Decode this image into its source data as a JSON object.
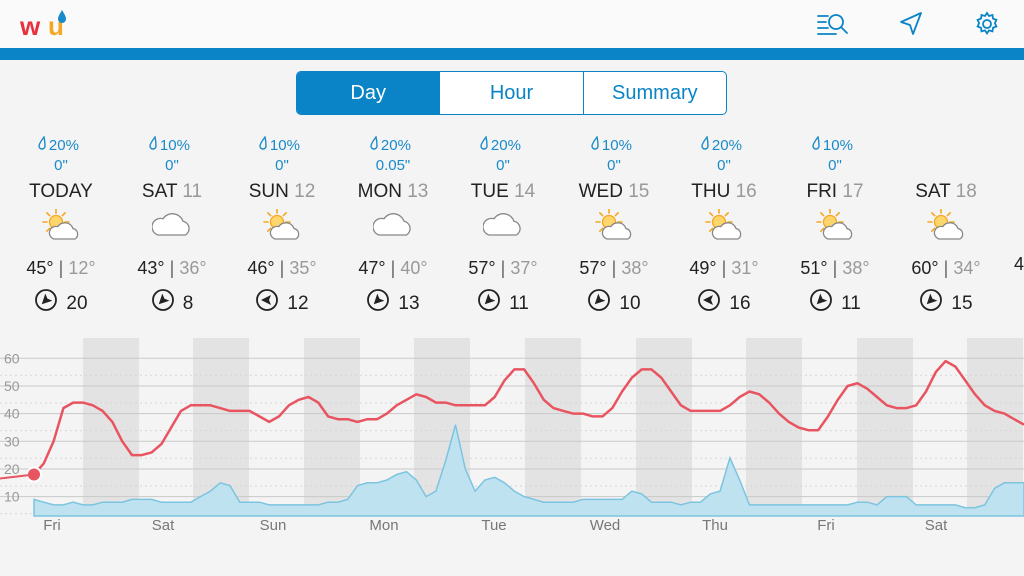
{
  "header": {
    "logo_text": "wu",
    "icons": [
      "search-list-icon",
      "location-arrow-icon",
      "gear-icon"
    ],
    "accent_color": "#0a84c6"
  },
  "tabs": [
    {
      "label": "Day",
      "active": true
    },
    {
      "label": "Hour",
      "active": false
    },
    {
      "label": "Summary",
      "active": false
    }
  ],
  "days": [
    {
      "precip": "20%",
      "amount": "0\"",
      "name": "TODAY",
      "num": "",
      "icon": "partly-cloudy",
      "hi": "45°",
      "lo": "12°",
      "wind": "20",
      "wind_dir": 225
    },
    {
      "precip": "10%",
      "amount": "0\"",
      "name": "SAT",
      "num": "11",
      "icon": "cloudy",
      "hi": "43°",
      "lo": "36°",
      "wind": "8",
      "wind_dir": 225
    },
    {
      "precip": "10%",
      "amount": "0\"",
      "name": "SUN",
      "num": "12",
      "icon": "partly-cloudy",
      "hi": "46°",
      "lo": "35°",
      "wind": "12",
      "wind_dir": 270
    },
    {
      "precip": "20%",
      "amount": "0.05\"",
      "name": "MON",
      "num": "13",
      "icon": "cloudy",
      "hi": "47°",
      "lo": "40°",
      "wind": "13",
      "wind_dir": 225
    },
    {
      "precip": "20%",
      "amount": "0\"",
      "name": "TUE",
      "num": "14",
      "icon": "cloudy",
      "hi": "57°",
      "lo": "37°",
      "wind": "11",
      "wind_dir": 225
    },
    {
      "precip": "10%",
      "amount": "0\"",
      "name": "WED",
      "num": "15",
      "icon": "partly-cloudy",
      "hi": "57°",
      "lo": "38°",
      "wind": "10",
      "wind_dir": 225
    },
    {
      "precip": "20%",
      "amount": "0\"",
      "name": "THU",
      "num": "16",
      "icon": "partly-cloudy",
      "hi": "49°",
      "lo": "31°",
      "wind": "16",
      "wind_dir": 270
    },
    {
      "precip": "10%",
      "amount": "0\"",
      "name": "FRI",
      "num": "17",
      "icon": "partly-cloudy",
      "hi": "51°",
      "lo": "38°",
      "wind": "11",
      "wind_dir": 225
    },
    {
      "precip": "",
      "amount": "",
      "name": "SAT",
      "num": "18",
      "icon": "partly-cloudy",
      "hi": "60°",
      "lo": "34°",
      "wind": "15",
      "wind_dir": 225
    }
  ],
  "partial_day": {
    "hi": "4"
  },
  "chart_data": {
    "type": "line",
    "y_ticks": [
      "60",
      "50",
      "40",
      "30",
      "20",
      "10"
    ],
    "ylim": [
      3,
      63
    ],
    "day_labels": [
      "Fri",
      "Sat",
      "Sun",
      "Mon",
      "Tue",
      "Wed",
      "Thu",
      "Fri",
      "Sat"
    ],
    "series": [
      {
        "color": "#e8545f",
        "values": [
          18,
          22,
          30,
          42,
          44,
          44,
          43,
          41,
          37,
          30,
          25,
          25,
          26,
          29,
          35,
          41,
          43,
          43,
          43,
          42,
          41,
          41,
          41,
          39,
          37,
          39,
          43,
          45,
          46,
          44,
          39,
          38,
          38,
          37,
          38,
          38,
          40,
          43,
          45,
          47,
          46,
          44,
          44,
          43,
          43,
          43,
          43,
          46,
          52,
          56,
          56,
          51,
          45,
          42,
          41,
          40,
          40,
          39,
          39,
          42,
          48,
          53,
          56,
          56,
          53,
          48,
          43,
          41,
          41,
          41,
          41,
          43,
          46,
          48,
          47,
          44,
          40,
          37,
          35,
          34,
          34,
          39,
          45,
          50,
          51,
          49,
          46,
          43,
          42,
          42,
          43,
          48,
          55,
          59,
          57,
          52,
          47,
          43,
          41,
          40,
          38,
          36
        ]
      },
      {
        "color": "#7cc4e0",
        "values": [
          9,
          8,
          7,
          7,
          8,
          7,
          7,
          8,
          8,
          8,
          9,
          9,
          9,
          8,
          8,
          8,
          8,
          10,
          12,
          15,
          14,
          8,
          8,
          8,
          7,
          7,
          7,
          7,
          7,
          7,
          8,
          8,
          9,
          14,
          15,
          15,
          16,
          18,
          19,
          16,
          10,
          12,
          23,
          36,
          20,
          12,
          16,
          17,
          15,
          12,
          10,
          9,
          8,
          8,
          8,
          8,
          9,
          9,
          9,
          9,
          9,
          12,
          11,
          8,
          8,
          8,
          7,
          8,
          8,
          11,
          12,
          24,
          16,
          7,
          7,
          7,
          7,
          7,
          7,
          7,
          7,
          7,
          7,
          7,
          8,
          8,
          7,
          10,
          10,
          10,
          7,
          7,
          7,
          7,
          7,
          6,
          6,
          7,
          13,
          15,
          15,
          15
        ]
      }
    ]
  }
}
